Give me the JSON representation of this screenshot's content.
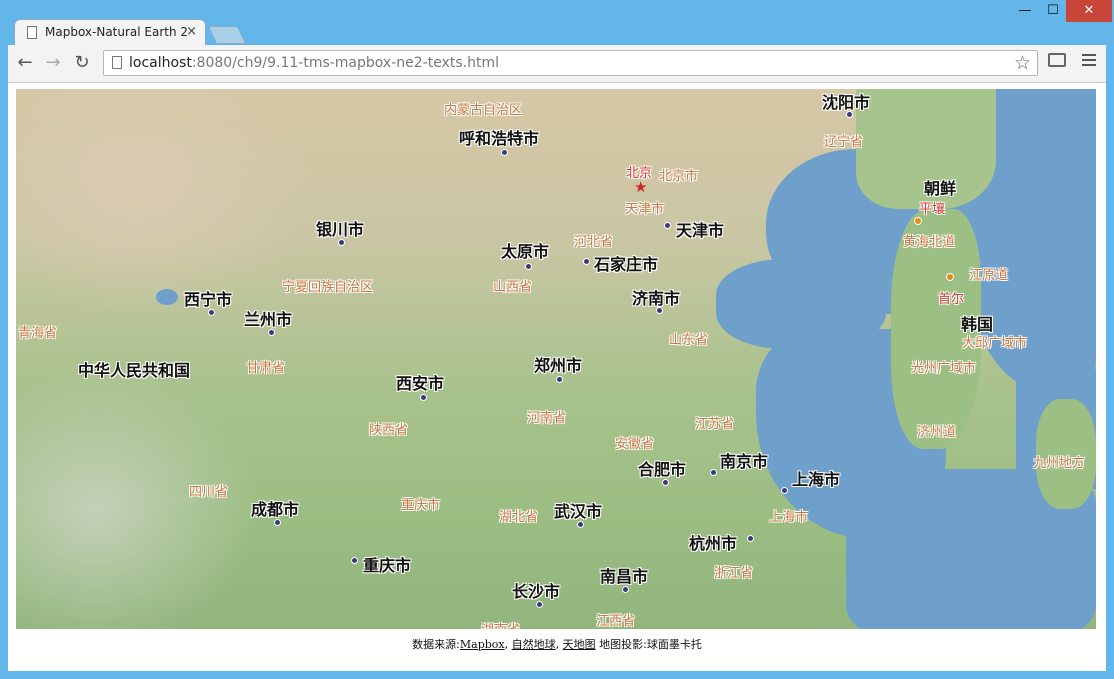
{
  "browser": {
    "tab_title": "Mapbox-Natural Earth 2",
    "tab_close": "×",
    "url_host": "localhost",
    "url_path": ":8080/ch9/9.11-tms-mapbox-ne2-texts.html",
    "min_label": "—",
    "max_label": "☐",
    "close_label": "✕",
    "back_icon": "←",
    "forward_icon": "→",
    "reload_icon": "↻",
    "star_icon": "☆"
  },
  "map": {
    "cities": [
      {
        "name": "沈阳市"
      },
      {
        "name": "呼和浩特市"
      },
      {
        "name": "银川市"
      },
      {
        "name": "天津市"
      },
      {
        "name": "太原市"
      },
      {
        "name": "石家庄市"
      },
      {
        "name": "济南市"
      },
      {
        "name": "西宁市"
      },
      {
        "name": "兰州市"
      },
      {
        "name": "中华人民共和国"
      },
      {
        "name": "西安市"
      },
      {
        "name": "郑州市"
      },
      {
        "name": "合肥市"
      },
      {
        "name": "南京市"
      },
      {
        "name": "上海市"
      },
      {
        "name": "成都市"
      },
      {
        "name": "武汉市"
      },
      {
        "name": "重庆市"
      },
      {
        "name": "杭州市"
      },
      {
        "name": "长沙市"
      },
      {
        "name": "南昌市"
      },
      {
        "name": "朝鲜"
      },
      {
        "name": "韩国"
      }
    ],
    "provinces": [
      {
        "name": "内蒙古自治区"
      },
      {
        "name": "辽宁省"
      },
      {
        "name": "北京市"
      },
      {
        "name": "天津市"
      },
      {
        "name": "河北省"
      },
      {
        "name": "宁夏回族自治区"
      },
      {
        "name": "山西省"
      },
      {
        "name": "青海省"
      },
      {
        "name": "山东省"
      },
      {
        "name": "甘肃省"
      },
      {
        "name": "陕西省"
      },
      {
        "name": "河南省"
      },
      {
        "name": "江苏省"
      },
      {
        "name": "安徽省"
      },
      {
        "name": "四川省"
      },
      {
        "name": "重庆市"
      },
      {
        "name": "湖北省"
      },
      {
        "name": "上海市"
      },
      {
        "name": "浙江省"
      },
      {
        "name": "江西省"
      },
      {
        "name": "湖南省"
      },
      {
        "name": "黄海北道"
      },
      {
        "name": "江原道"
      },
      {
        "name": "大邱广域市"
      },
      {
        "name": "光州广域市"
      },
      {
        "name": "济州道"
      },
      {
        "name": "九州地方"
      }
    ],
    "capitals": [
      {
        "name": "北京"
      },
      {
        "name": "平壤"
      },
      {
        "name": "首尔"
      }
    ]
  },
  "attribution": {
    "prefix": "数据来源:",
    "link_mapbox": "Mapbox",
    "sep1": ", ",
    "link_ne": "自然地球",
    "sep2": ", ",
    "link_tdt": "天地图",
    "suffix": " 地图投影:球面墨卡托"
  },
  "colors": {
    "capital_star": "#d0262a",
    "province_label": "#c9773f",
    "water": "#6f9fcb"
  }
}
